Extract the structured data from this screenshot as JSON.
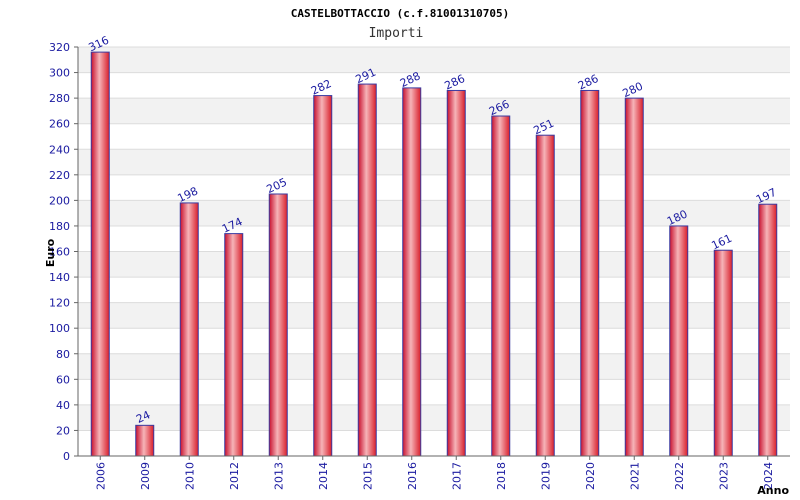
{
  "chart_data": {
    "type": "bar",
    "title": "CASTELBOTTACCIO (c.f.81001310705)",
    "subtitle": "Importi",
    "xlabel": "Anno",
    "ylabel": "Euro",
    "categories": [
      "2006",
      "2009",
      "2010",
      "2012",
      "2013",
      "2014",
      "2015",
      "2016",
      "2017",
      "2018",
      "2019",
      "2020",
      "2021",
      "2022",
      "2023",
      "2024"
    ],
    "values": [
      316,
      24,
      198,
      174,
      205,
      282,
      291,
      288,
      286,
      266,
      251,
      286,
      280,
      180,
      161,
      197
    ],
    "ylim": [
      0,
      320
    ],
    "yticks": [
      0,
      20,
      40,
      60,
      80,
      100,
      120,
      140,
      160,
      180,
      200,
      220,
      240,
      260,
      280,
      300,
      320
    ],
    "grid": true,
    "legend": "none",
    "colors": {
      "bar": "#e8323a",
      "bar_light": "#f6b4b8",
      "bar_edge": "#3a3aa0",
      "tick_text": "#1a1aa0",
      "band": "#f2f2f2"
    }
  }
}
